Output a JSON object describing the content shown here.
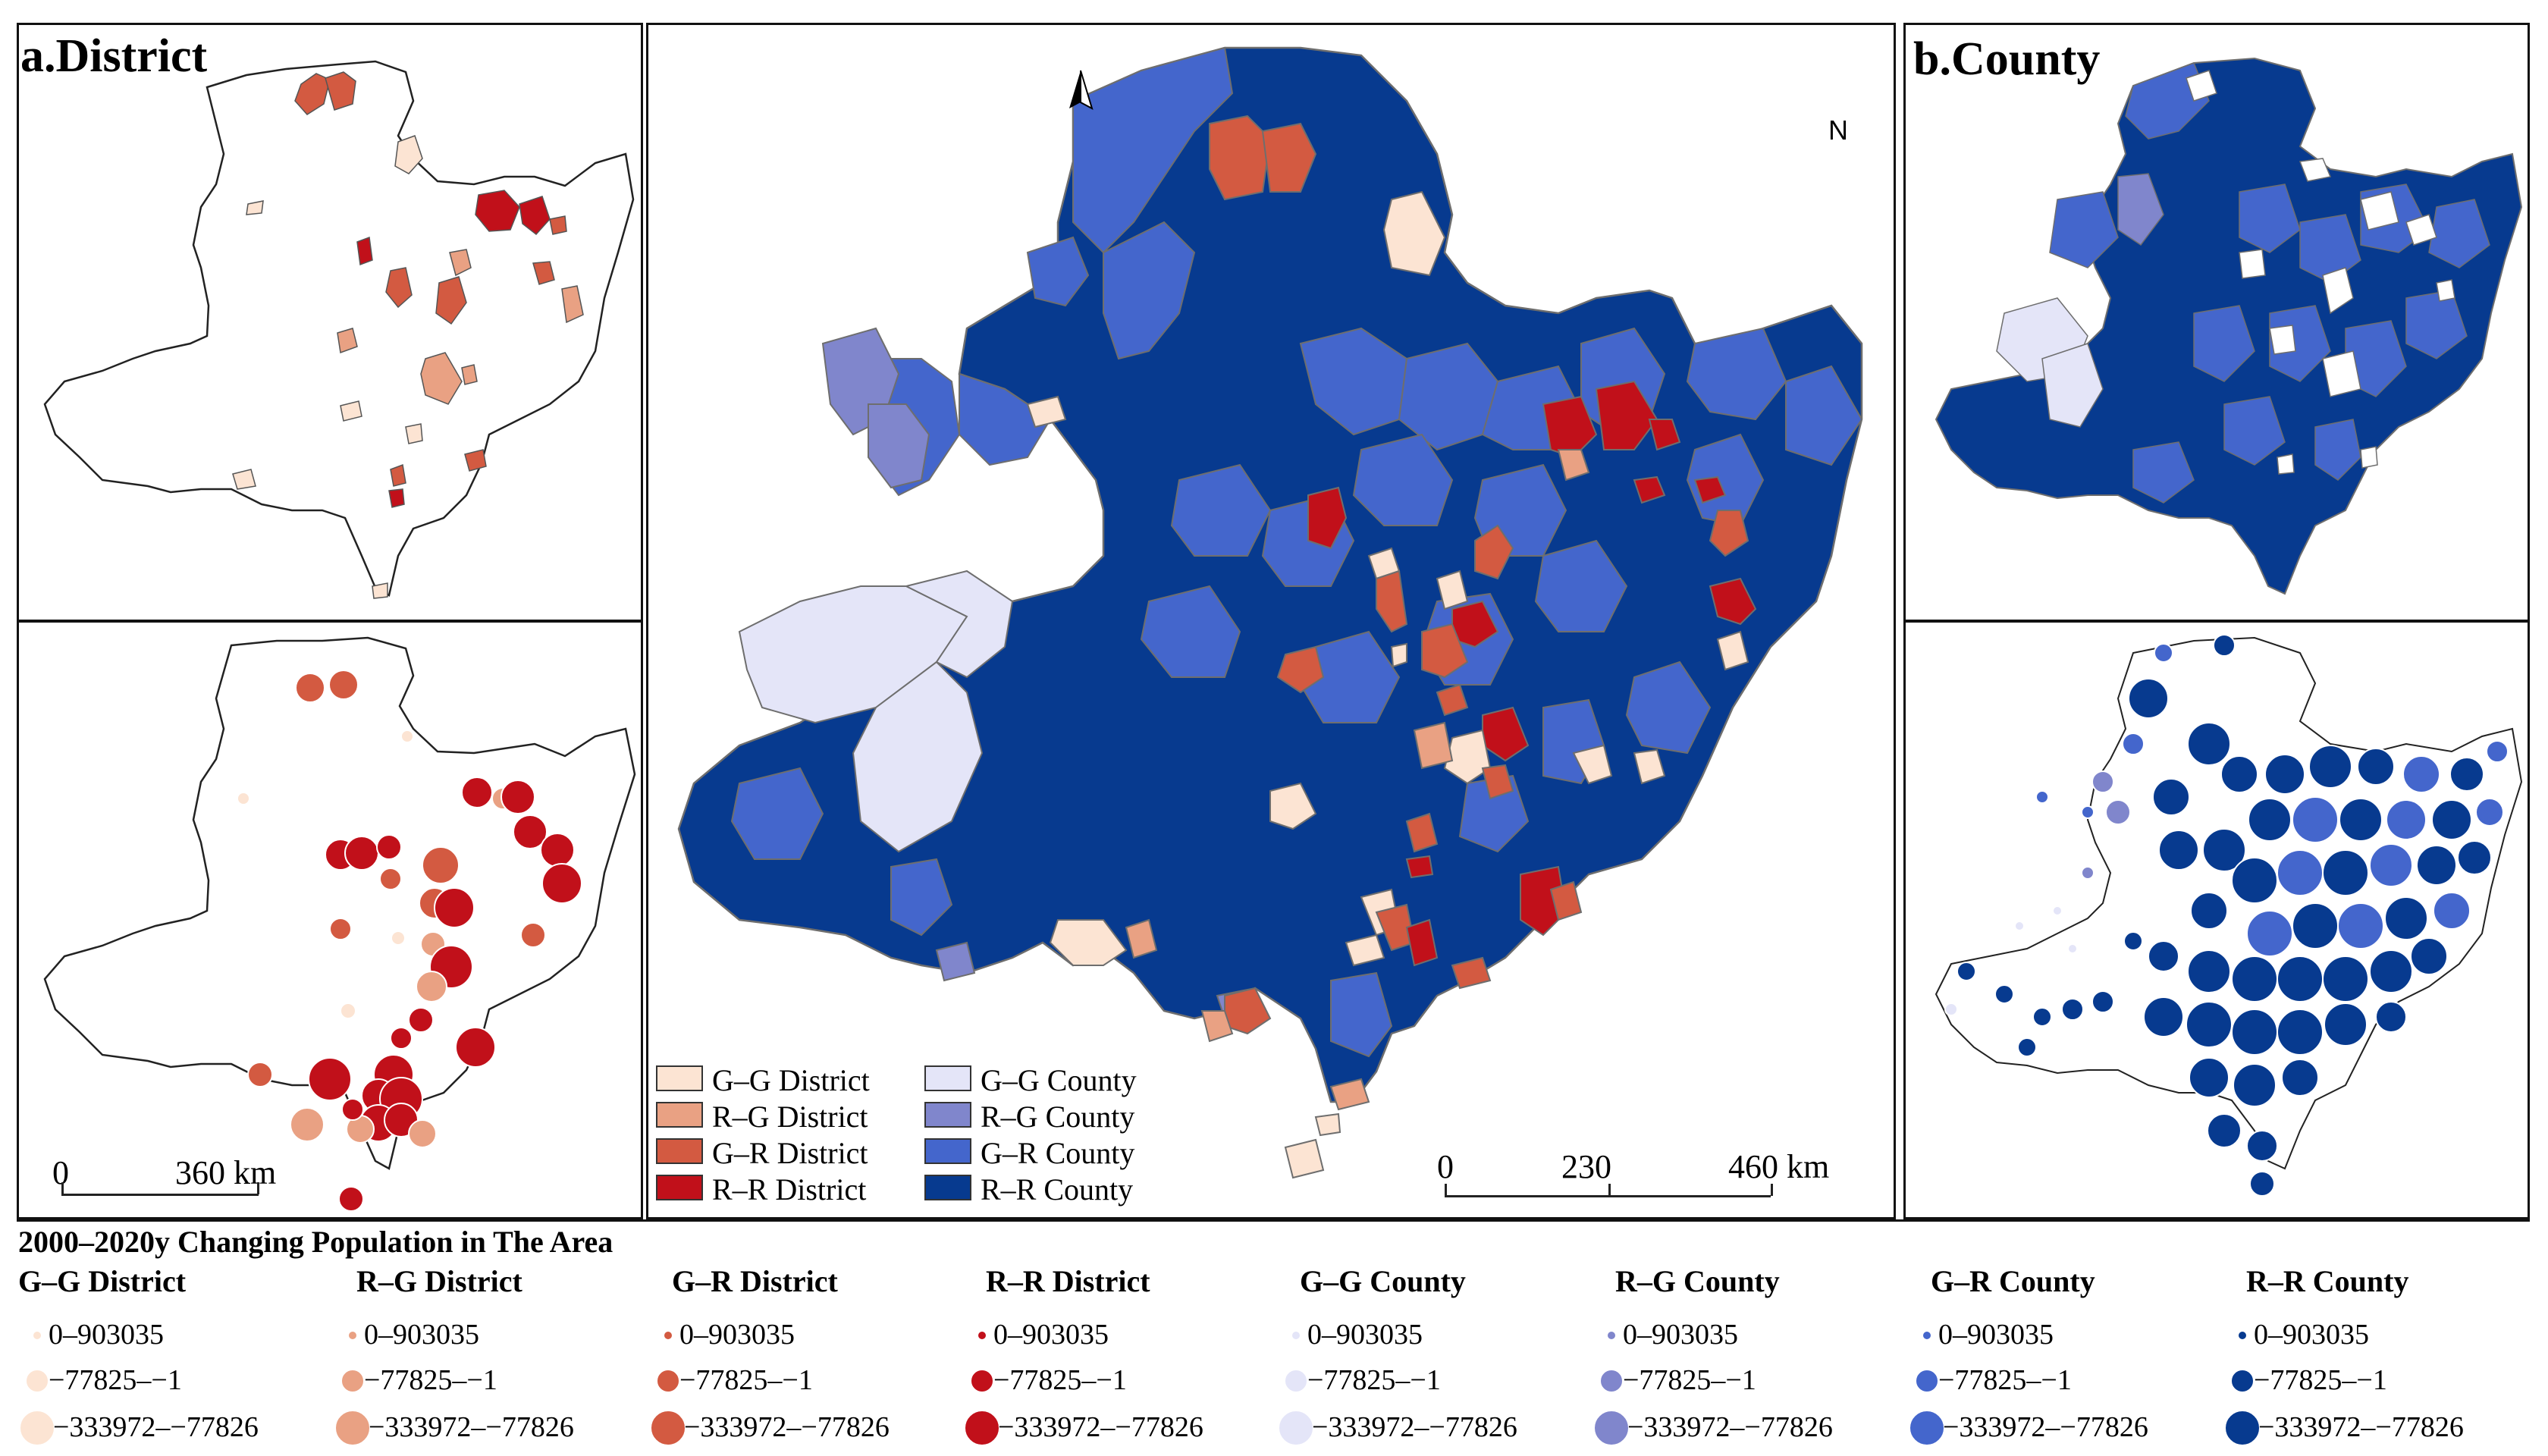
{
  "panels": {
    "district_title": "a.District",
    "county_title": "b.County",
    "north_label": "N"
  },
  "colors": {
    "gg_district": "#fce4d3",
    "rg_district": "#e9a183",
    "gr_district": "#d35a41",
    "rr_district": "#c1101a",
    "gg_county": "#e4e5f8",
    "rg_county": "#8086cc",
    "gr_county": "#4466cc",
    "rr_county": "#073a8f",
    "boundary": "#6e6e6e"
  },
  "main_legend": [
    {
      "label": "G–G District",
      "color_key": "gg_district"
    },
    {
      "label": "R–G District",
      "color_key": "rg_district"
    },
    {
      "label": "G–R District",
      "color_key": "gr_district"
    },
    {
      "label": "R–R District",
      "color_key": "rr_district"
    },
    {
      "label": "G–G County",
      "color_key": "gg_county"
    },
    {
      "label": "R–G County",
      "color_key": "rg_county"
    },
    {
      "label": "G–R County",
      "color_key": "gr_county"
    },
    {
      "label": "R–R County",
      "color_key": "rr_county"
    }
  ],
  "scale_bars": {
    "district": {
      "start": "0",
      "end": "360 km"
    },
    "main": {
      "start": "0",
      "mid": "230",
      "end": "460 km"
    }
  },
  "bottom_legend": {
    "title": "2000–2020y Changing Population in The Area",
    "groups": [
      {
        "name": "G–G District",
        "color": "#fce4d3"
      },
      {
        "name": "R–G District",
        "color": "#e9a183"
      },
      {
        "name": "G–R District",
        "color": "#d35a41"
      },
      {
        "name": "R–R District",
        "color": "#c1101a"
      },
      {
        "name": "G–G County",
        "color": "#e4e5f8"
      },
      {
        "name": "R–G County",
        "color": "#8086cc"
      },
      {
        "name": "G–R County",
        "color": "#4466cc"
      },
      {
        "name": "R–R County",
        "color": "#073a8f"
      }
    ],
    "classes": [
      "0–903035",
      "−77825–−1",
      "−333972–−77826"
    ]
  }
}
